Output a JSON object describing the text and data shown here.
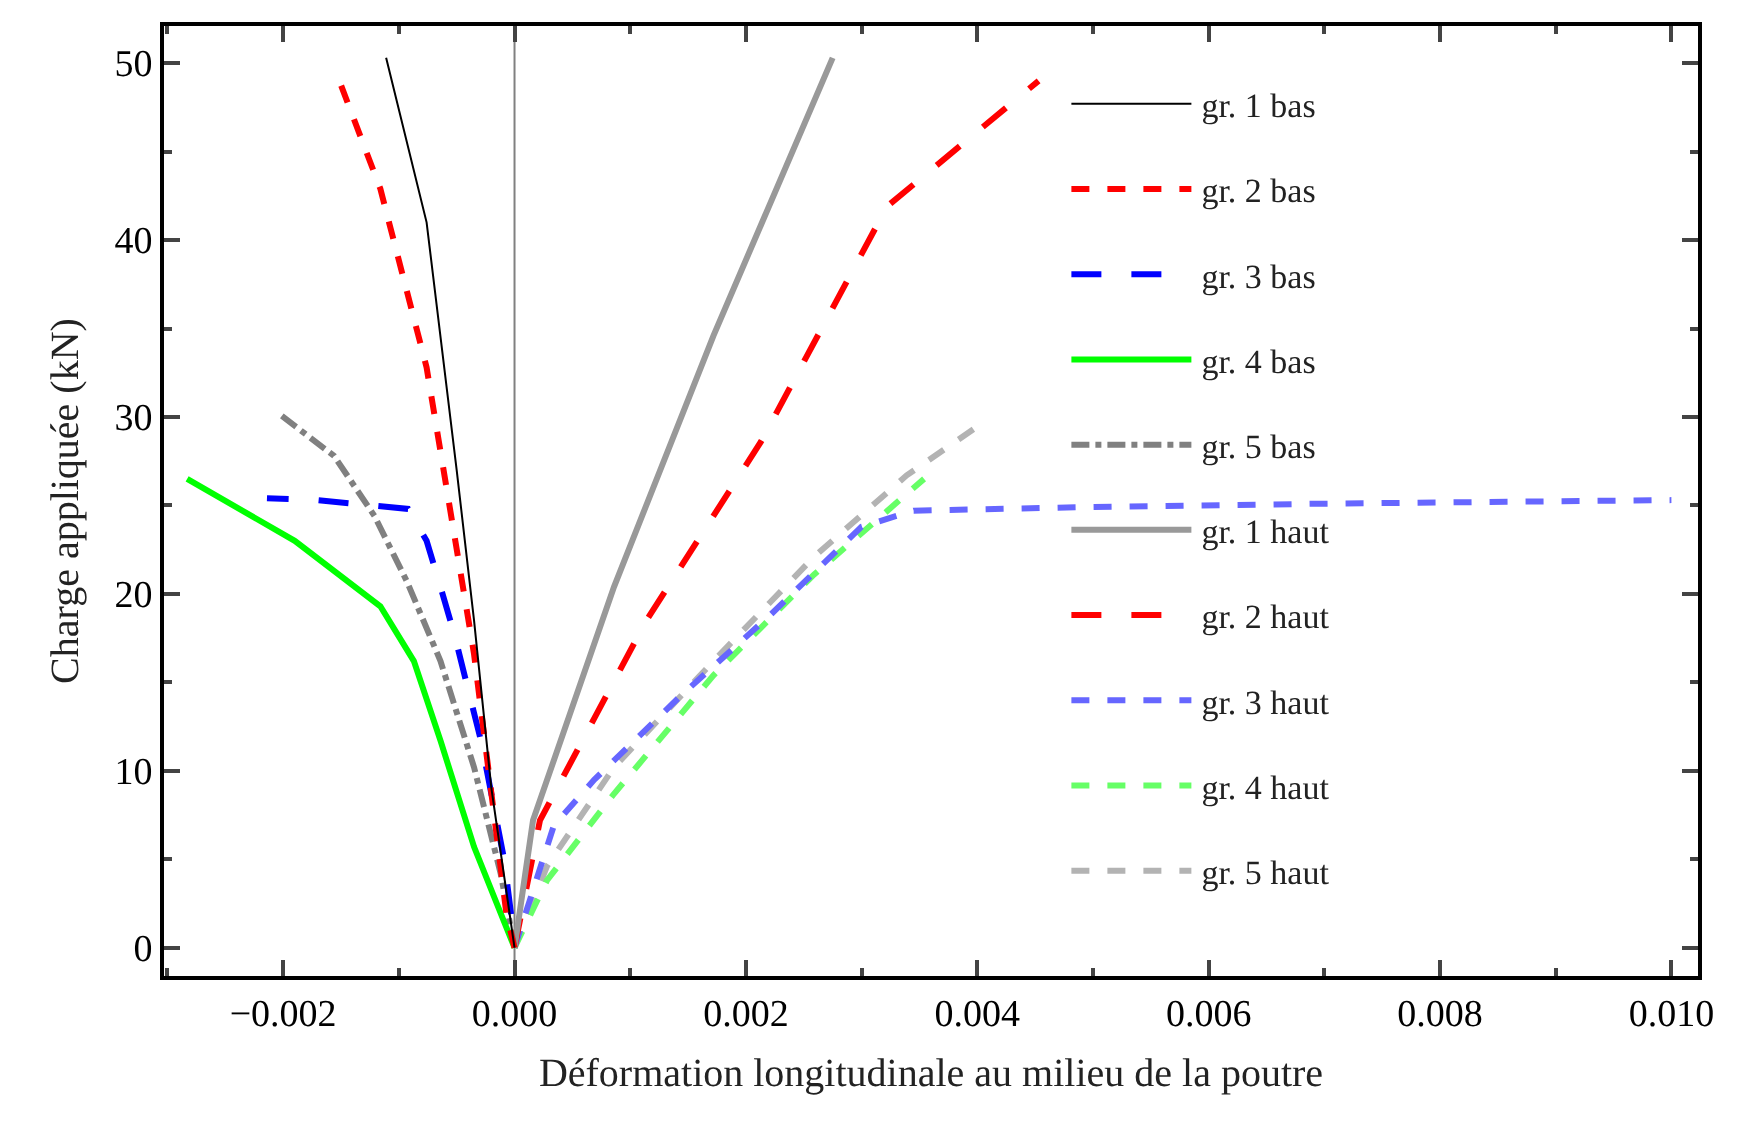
{
  "chart_data": {
    "type": "line",
    "xlabel": "Déformation longitudinale au milieu de la poutre",
    "ylabel": "Charge appliquée (kN)",
    "xlim": [
      -0.00303,
      0.01023
    ],
    "ylim": [
      -1.6,
      52.1
    ],
    "xticks": [
      {
        "value": -0.002,
        "label": "−0.002"
      },
      {
        "value": 0,
        "label": "0.000"
      },
      {
        "value": 0.002,
        "label": "0.002"
      },
      {
        "value": 0.004,
        "label": "0.004"
      },
      {
        "value": 0.006,
        "label": "0.006"
      },
      {
        "value": 0.008,
        "label": "0.008"
      },
      {
        "value": 0.01,
        "label": "0.010"
      }
    ],
    "yticks": [
      0,
      10,
      20,
      30,
      40,
      50
    ],
    "grid": false,
    "legend": "top right",
    "marker": "none",
    "ref_lines": [
      {
        "axis": "x",
        "value": 0,
        "label": null,
        "color": "#808080"
      }
    ],
    "series": [
      {
        "name": "gr. 1 bas",
        "color": "#000000",
        "line_style": "solid",
        "x": [
          0,
          -0.0002,
          -0.00035,
          -0.0005,
          -0.00076,
          -0.00111
        ],
        "values": [
          0,
          9,
          18.5,
          27,
          41,
          50.3
        ]
      },
      {
        "name": "gr. 2 bas",
        "color": "#ff0000",
        "line_style": "dashed",
        "x": [
          0,
          -7e-05,
          -0.00035,
          -0.00076,
          -0.00116,
          -0.00152
        ],
        "values": [
          0,
          1.9,
          16.6,
          32.8,
          42.9,
          49.1
        ]
      },
      {
        "name": "gr. 3 bas",
        "color": "#0000ff",
        "line_style": "dashed",
        "x": [
          -3e-05,
          -9e-05,
          -0.00029,
          -0.00052,
          -0.00064,
          -0.00076,
          -0.00092,
          -0.00171,
          -0.00214
        ],
        "values": [
          1.9,
          5,
          11.7,
          17.7,
          20.4,
          23,
          24.8,
          25.3,
          25.4
        ]
      },
      {
        "name": "gr. 4 bas",
        "color": "#00ff00",
        "line_style": "solid",
        "x": [
          0,
          -0.00035,
          -0.00064,
          -0.00087,
          -0.00116,
          -0.0019,
          -0.00283
        ],
        "values": [
          0,
          5.7,
          11.7,
          16.2,
          19.3,
          23,
          26.5
        ]
      },
      {
        "name": "gr. 5 bas",
        "color": "#808080",
        "line_style": "dashed",
        "x": [
          0,
          -0.00012,
          -0.00035,
          -0.00064,
          -0.00093,
          -0.00121,
          -0.00156,
          -0.00202
        ],
        "values": [
          0,
          4.2,
          10.2,
          16.2,
          20.7,
          24.4,
          27.8,
          30.1
        ]
      },
      {
        "name": "gr. 1 haut",
        "color": "#999999",
        "line_style": "solid",
        "x": [
          0,
          0.00016,
          0.00086,
          0.00172,
          0.00275
        ],
        "values": [
          0,
          7.2,
          20.4,
          34.6,
          50.3
        ]
      },
      {
        "name": "gr. 2 haut",
        "color": "#ff0000",
        "line_style": "dashed",
        "x": [
          0,
          0.00022,
          0.00114,
          0.00213,
          0.00322,
          0.00453
        ],
        "values": [
          0,
          7.2,
          18.5,
          28.6,
          41.9,
          49
        ]
      },
      {
        "name": "gr. 3 haut",
        "color": "#6666ff",
        "line_style": "dashed",
        "x": [
          0,
          0.00034,
          0.00069,
          0.00143,
          0.00221,
          0.003,
          0.00345,
          0.00489,
          0.007,
          0.01
        ],
        "values": [
          0,
          6.9,
          9.5,
          14.2,
          18.8,
          23.8,
          24.7,
          24.9,
          25.1,
          25.3
        ]
      },
      {
        "name": "gr. 4 haut",
        "color": "#66ff66",
        "line_style": "dashed",
        "x": [
          0,
          0.00028,
          0.00086,
          0.00172,
          0.00259,
          0.00354
        ],
        "values": [
          0,
          3.8,
          8.7,
          15.4,
          21.1,
          26.5
        ]
      },
      {
        "name": "gr. 5 haut",
        "color": "#b3b3b3",
        "line_style": "dashed",
        "x": [
          0,
          0.00028,
          0.00086,
          0.00172,
          0.00259,
          0.00339,
          0.00401
        ],
        "values": [
          0,
          4.6,
          10.2,
          16.2,
          22.1,
          26.7,
          29.5
        ]
      }
    ]
  }
}
